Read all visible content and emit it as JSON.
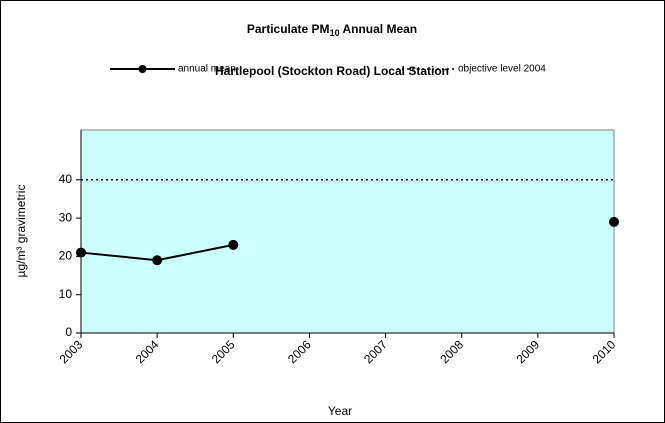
{
  "chart_data": {
    "type": "line",
    "title": [
      "Particulate PM",
      "10",
      " Annual Mean"
    ],
    "subtitle": "Hartlepool (Stockton Road) Local Station",
    "x_label": "Year",
    "y_label": "µg/m³ gravimetric",
    "x": [
      2003,
      2004,
      2005,
      2006,
      2007,
      2008,
      2009,
      2010
    ],
    "xlim": [
      2003,
      2010
    ],
    "xticks": [
      2003,
      2004,
      2005,
      2006,
      2007,
      2008,
      2009,
      2010
    ],
    "ylim": [
      0,
      53
    ],
    "yticks": [
      0,
      10,
      20,
      30,
      40
    ],
    "plot_background": "#ccffff",
    "series": [
      {
        "name": "annual mean",
        "color": "#000000",
        "style": "solid",
        "markers": true,
        "values": [
          21,
          19,
          23,
          null,
          null,
          null,
          null,
          29
        ]
      },
      {
        "name": "objective level 2004",
        "color": "#000000",
        "style": "dotted",
        "markers": false,
        "values": [
          40,
          40,
          40,
          40,
          40,
          40,
          40,
          40
        ]
      }
    ]
  }
}
